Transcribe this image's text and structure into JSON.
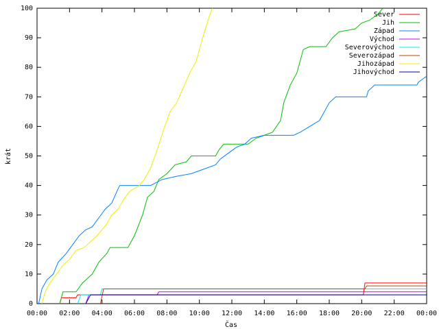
{
  "chart_data": {
    "type": "line",
    "x_label": "Čas",
    "y_label": "krát",
    "xlim": [
      0,
      24
    ],
    "ylim": [
      0,
      100
    ],
    "xticks": [
      {
        "value": 0,
        "label": "00:00"
      },
      {
        "value": 2,
        "label": "02:00"
      },
      {
        "value": 4,
        "label": "04:00"
      },
      {
        "value": 6,
        "label": "06:00"
      },
      {
        "value": 8,
        "label": "08:00"
      },
      {
        "value": 10,
        "label": "10:00"
      },
      {
        "value": 12,
        "label": "12:00"
      },
      {
        "value": 14,
        "label": "14:00"
      },
      {
        "value": 16,
        "label": "16:00"
      },
      {
        "value": 18,
        "label": "18:00"
      },
      {
        "value": 20,
        "label": "20:00"
      },
      {
        "value": 22,
        "label": "22:00"
      },
      {
        "value": 24,
        "label": "00:00"
      }
    ],
    "yticks": [
      0,
      10,
      20,
      30,
      40,
      50,
      60,
      70,
      80,
      90,
      100
    ],
    "grid": false,
    "legend": "top-right",
    "series": [
      {
        "name": "Sever",
        "color": "#ff0000",
        "x": [
          1.4,
          1.5,
          2.4,
          2.5,
          20.1,
          20.2,
          24
        ],
        "values": [
          0,
          2,
          2,
          3,
          3,
          7,
          7
        ]
      },
      {
        "name": "Jih",
        "color": "#00c000",
        "x": [
          1.4,
          1.6,
          2.4,
          2.8,
          3.4,
          3.8,
          4.3,
          4.5,
          5.6,
          6.0,
          6.5,
          6.8,
          7.2,
          7.5,
          8.0,
          8.5,
          9.2,
          9.5,
          11.0,
          11.2,
          11.5,
          13.0,
          13.5,
          14.5,
          15.0,
          15.2,
          15.6,
          16.0,
          16.4,
          16.8,
          17.8,
          18.2,
          18.6,
          19.6,
          20.0,
          20.5,
          21.0,
          21.3
        ],
        "values": [
          0,
          4,
          4,
          7,
          10,
          14,
          17,
          19,
          19,
          23,
          30,
          36,
          38,
          42,
          44,
          47,
          48,
          50,
          50,
          52,
          54,
          54,
          56,
          58,
          62,
          68,
          74,
          78,
          86,
          87,
          87,
          90,
          92,
          93,
          95,
          96,
          98,
          100
        ]
      },
      {
        "name": "Západ",
        "color": "#0080ff",
        "x": [
          0.1,
          0.3,
          0.6,
          1.0,
          1.3,
          1.8,
          2.2,
          2.6,
          3.0,
          3.4,
          3.8,
          4.2,
          4.6,
          5.0,
          5.1,
          7.0,
          7.7,
          8.5,
          9.5,
          10.5,
          11.0,
          11.3,
          11.8,
          12.3,
          12.8,
          13.2,
          14.0,
          15.8,
          16.2,
          16.8,
          17.4,
          17.6,
          18.0,
          18.4,
          20.3,
          20.4,
          20.8,
          23.4,
          23.5,
          24
        ],
        "values": [
          0,
          5,
          8,
          10,
          14,
          17,
          20,
          23,
          25,
          26,
          29,
          32,
          34,
          39,
          40,
          40,
          42,
          43,
          44,
          46,
          47,
          49,
          51,
          53,
          54,
          56,
          57,
          57,
          58,
          60,
          62,
          64,
          68,
          70,
          70,
          72,
          74,
          74,
          75,
          77
        ]
      },
      {
        "name": "Východ",
        "color": "#c000ff",
        "x": [
          3.0,
          3.2,
          7.4,
          7.5,
          24
        ],
        "values": [
          0,
          3,
          3,
          4,
          4
        ]
      },
      {
        "name": "Severovýchod",
        "color": "#00eeee",
        "x": [
          2.5,
          2.7,
          3.9,
          4.0,
          24
        ],
        "values": [
          0,
          3,
          3,
          5,
          5
        ]
      },
      {
        "name": "Severozápad",
        "color": "#c04000",
        "x": [
          3.9,
          4.1,
          20.2,
          20.3,
          24
        ],
        "values": [
          0,
          5,
          5,
          6,
          6
        ]
      },
      {
        "name": "Jihozápad",
        "color": "#eeee00",
        "x": [
          0.3,
          0.5,
          0.8,
          1.2,
          1.6,
          2.0,
          2.4,
          2.9,
          3.3,
          3.7,
          4.3,
          4.6,
          5.0,
          5.3,
          5.7,
          6.3,
          6.6,
          7.0,
          7.4,
          7.8,
          8.2,
          8.6,
          9.0,
          9.4,
          9.8,
          10.2,
          10.6,
          10.8
        ],
        "values": [
          0,
          4,
          7,
          10,
          13,
          15,
          18,
          19,
          21,
          23,
          27,
          30,
          32,
          35,
          38,
          40,
          42,
          46,
          52,
          59,
          65,
          68,
          73,
          78,
          82,
          90,
          97,
          100
        ]
      },
      {
        "name": "Jihovýchod",
        "color": "#0000a0",
        "x": [
          3.0,
          3.3,
          24
        ],
        "values": [
          0,
          3,
          3
        ]
      }
    ]
  }
}
